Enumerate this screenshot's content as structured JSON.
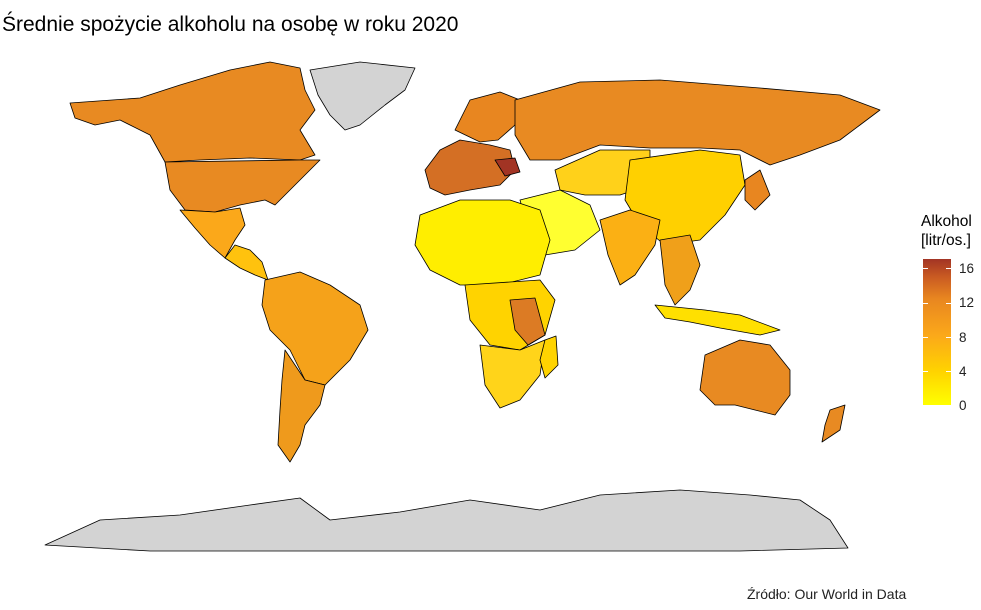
{
  "title": "Średnie spożycie alkoholu na osobę w roku 2020",
  "legend": {
    "title_line1": "Alkohol",
    "title_line2": "[litr/os.]",
    "ticks": [
      "16",
      "12",
      "8",
      "4",
      "0"
    ],
    "range": [
      0,
      17
    ],
    "colors": {
      "low": "#ffff00",
      "mid": "#fba81a",
      "high": "#a23424",
      "no_data": "#d3d3d3",
      "border": "#000000"
    }
  },
  "caption": "Źródło: Our World in Data"
}
